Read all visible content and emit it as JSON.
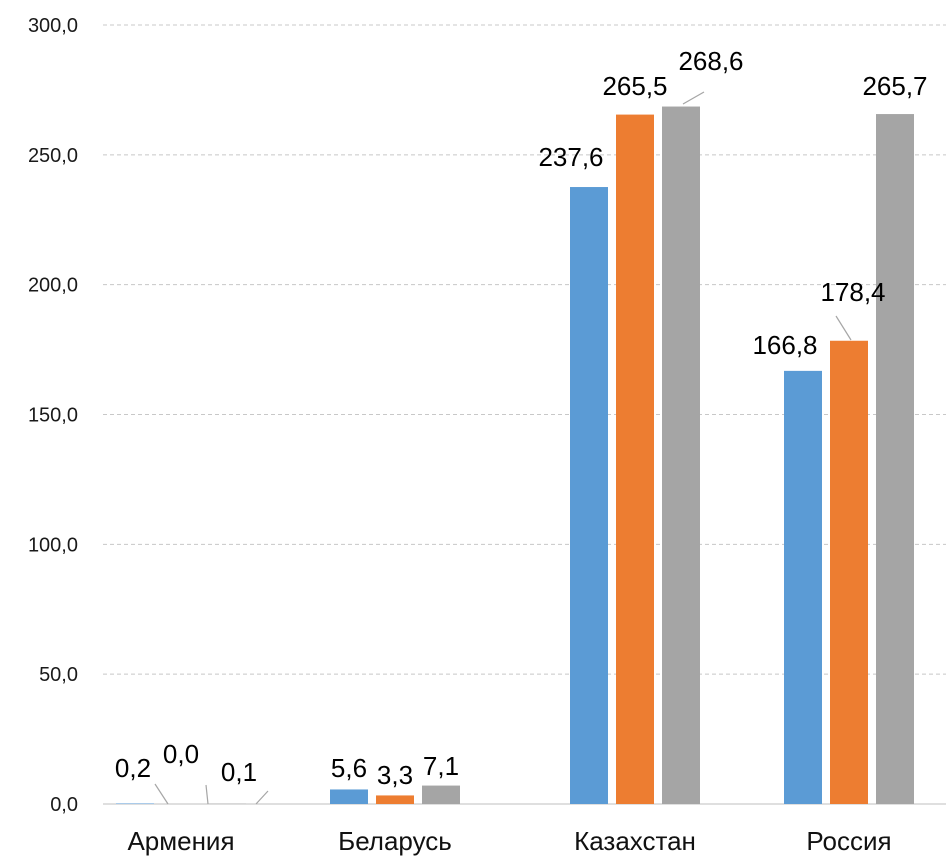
{
  "chart_data": {
    "type": "bar",
    "categories": [
      "Армения",
      "Беларусь",
      "Казахстан",
      "Россия"
    ],
    "series": [
      {
        "values": [
          0.2,
          5.6,
          237.6,
          166.8
        ],
        "labels": [
          "0,2",
          "5,6",
          "237,6",
          "166,8"
        ],
        "color": "#5b9bd5"
      },
      {
        "values": [
          0.0,
          3.3,
          265.5,
          178.4
        ],
        "labels": [
          "0,0",
          "3,3",
          "265,5",
          "178,4"
        ],
        "color": "#ed7d31"
      },
      {
        "values": [
          0.1,
          7.1,
          268.6,
          265.7
        ],
        "labels": [
          "0,1",
          "7,1",
          "268,6",
          "265,7"
        ],
        "color": "#a5a5a5"
      }
    ],
    "ylim": [
      0,
      300
    ],
    "yticks": [
      0,
      50,
      100,
      150,
      200,
      250,
      300
    ],
    "ytick_labels": [
      "0,0",
      "50,0",
      "100,0",
      "150,0",
      "200,0",
      "250,0",
      "300,0"
    ],
    "grid": true,
    "legend": "none"
  }
}
